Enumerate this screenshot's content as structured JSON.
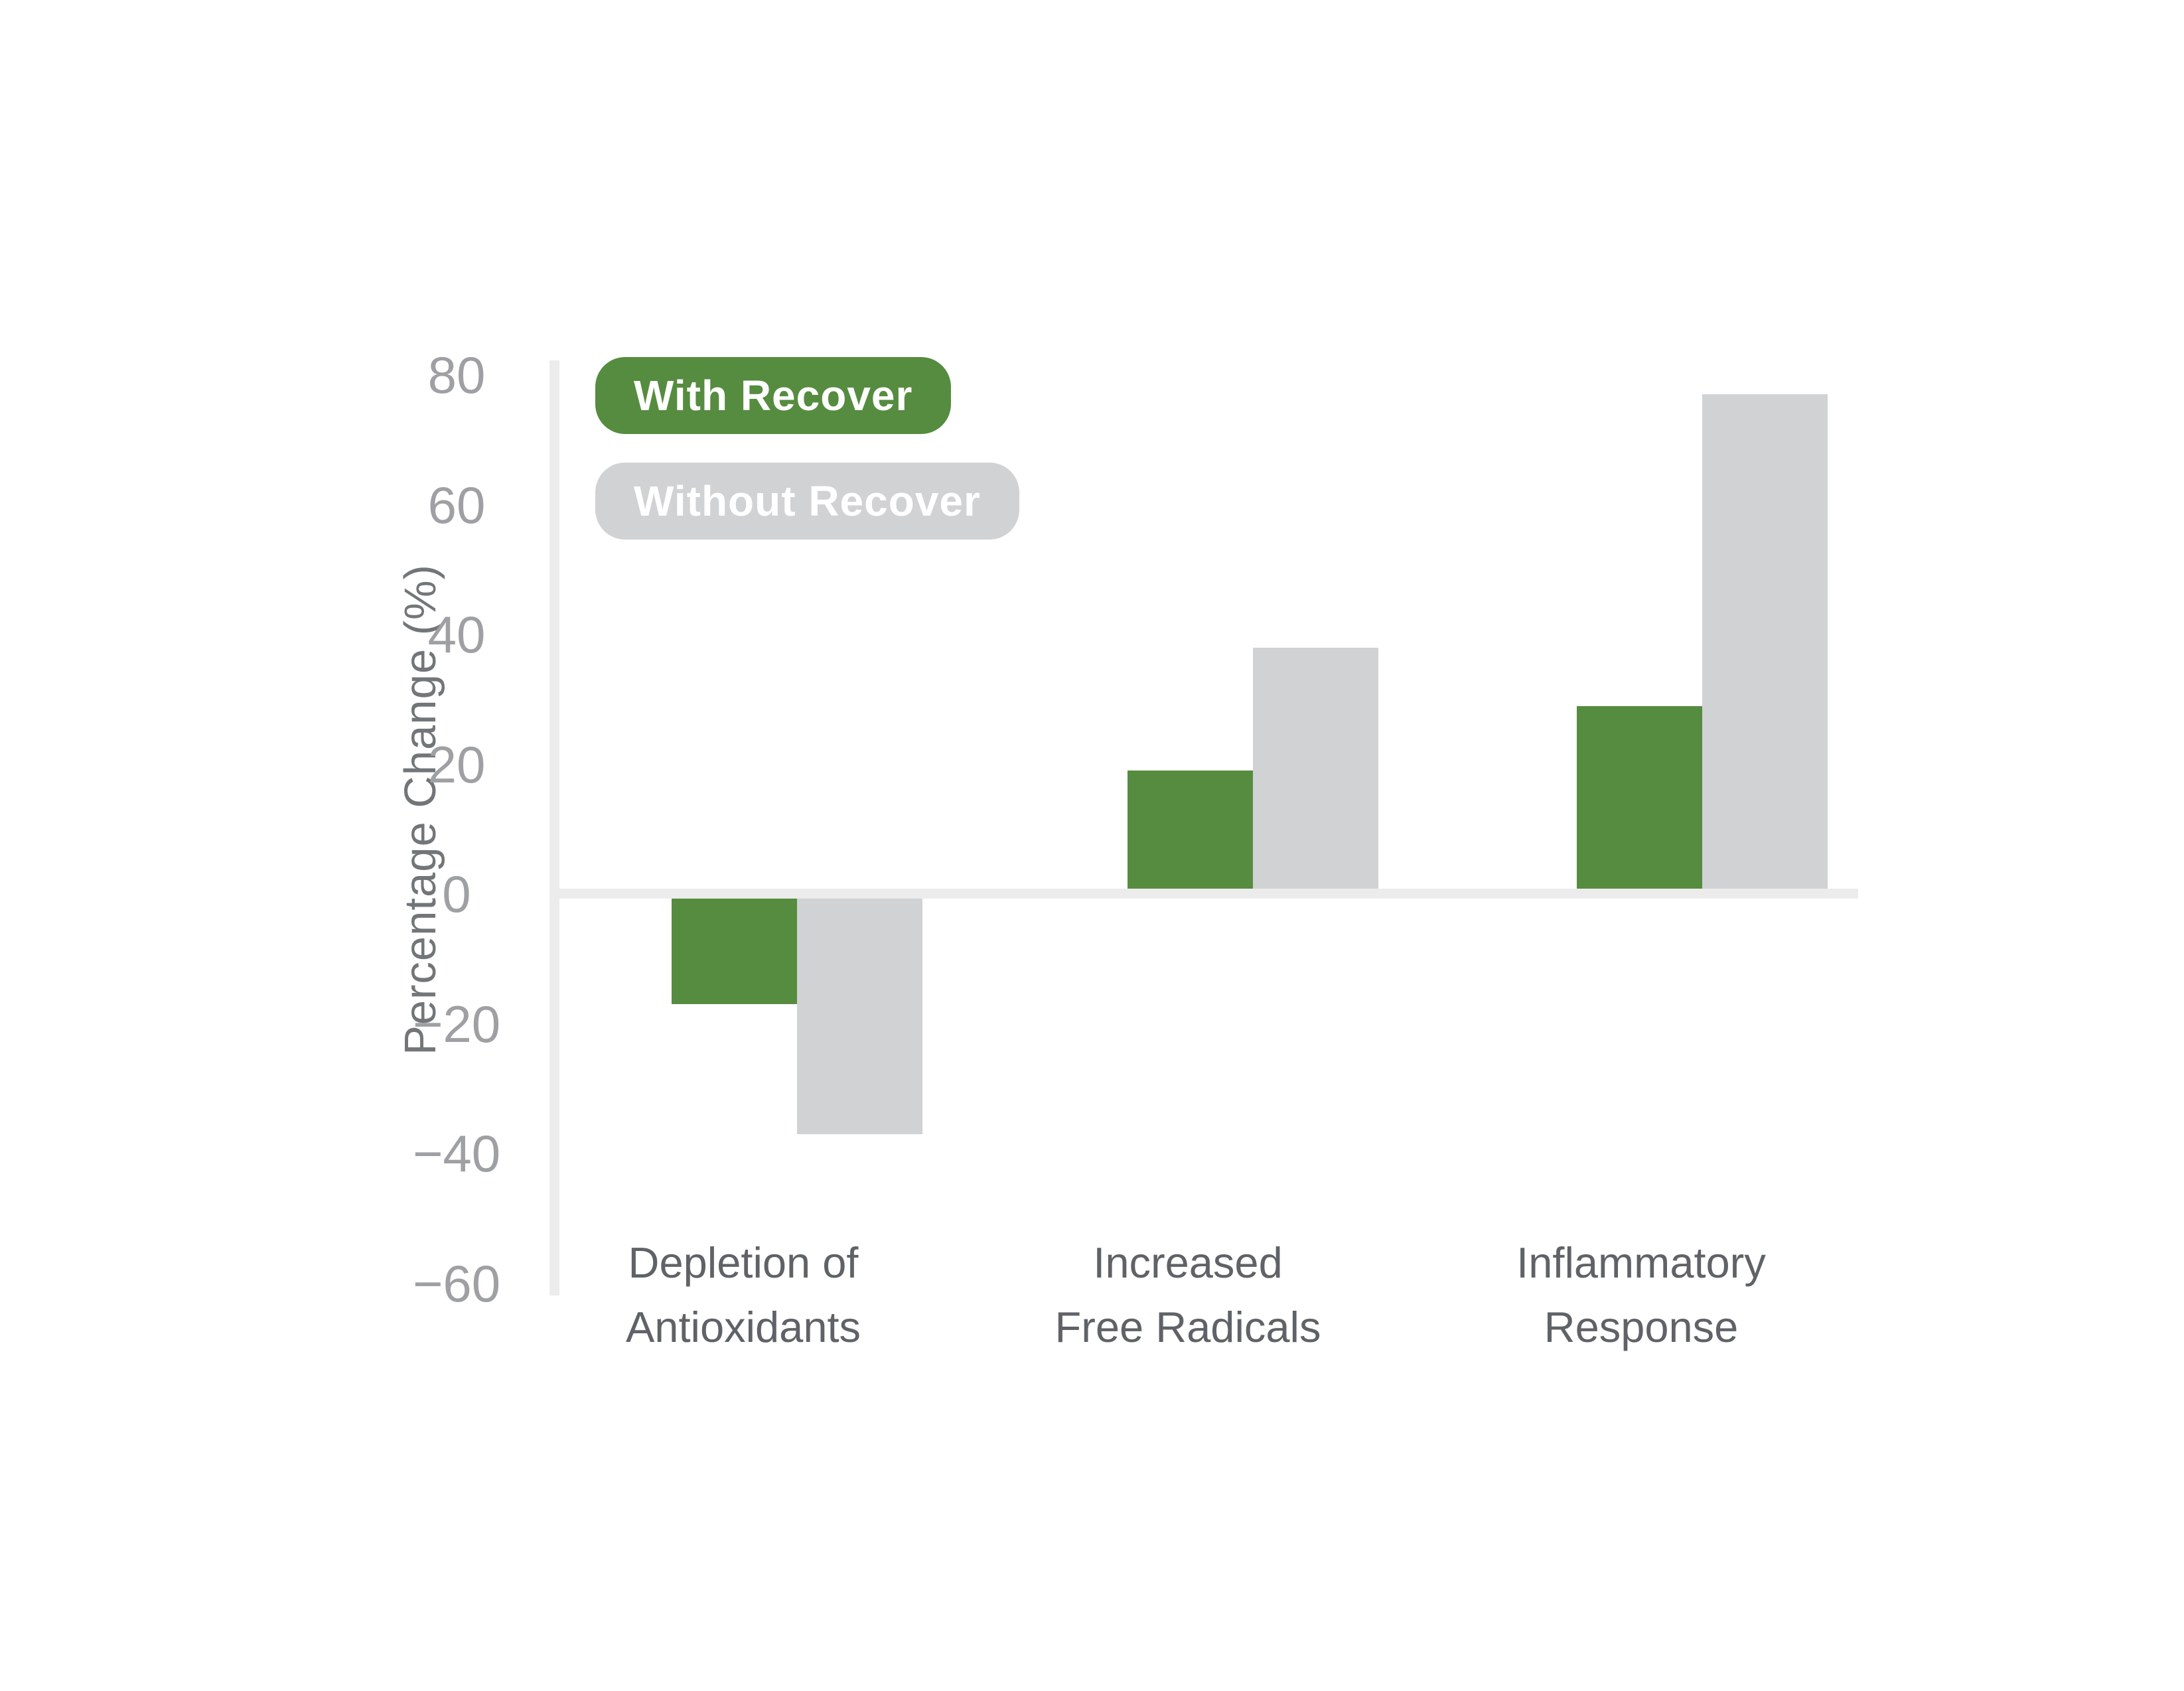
{
  "chart_data": {
    "type": "bar",
    "title": "",
    "xlabel": "",
    "ylabel": "Percentage Change (%)",
    "categories": [
      [
        "Depletion of",
        "Antioxidants"
      ],
      [
        "Increased",
        "Free Radicals"
      ],
      [
        "Inflammatory",
        "Response"
      ]
    ],
    "series": [
      {
        "name": "With Recover",
        "color": "#568c3f",
        "values": [
          -17,
          19,
          29
        ]
      },
      {
        "name": "Without Recover",
        "color": "#d0d2d4",
        "values": [
          -37,
          38,
          77
        ]
      }
    ],
    "y_ticks": [
      80,
      60,
      40,
      20,
      0,
      -20,
      -40,
      -60
    ],
    "ylim": [
      -60,
      80
    ],
    "grid": false,
    "legend_position": "top-left-inside",
    "axis_line_color": "#ececec",
    "tick_label_color": "#9ea0a3",
    "category_label_color": "#5f6266",
    "axis_title_color": "#737679"
  }
}
